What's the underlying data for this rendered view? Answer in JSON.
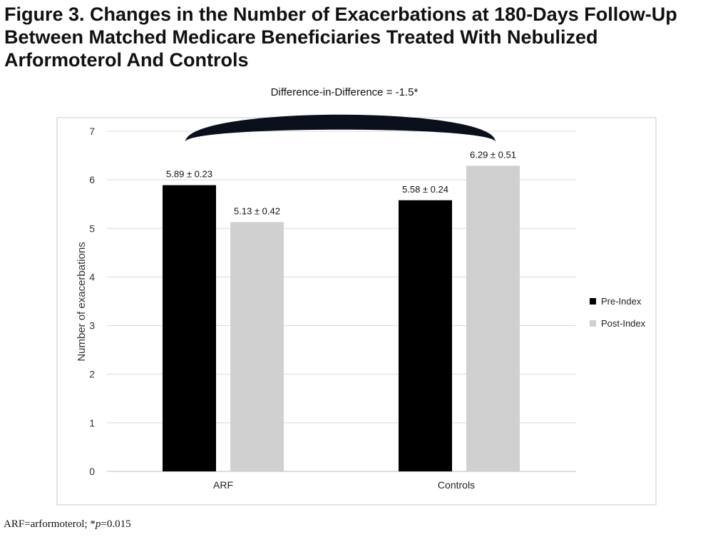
{
  "figure": {
    "title": "Figure 3. Changes in the Number of Exacerbations at 180-Days Follow-Up Between Matched Medicare Beneficiaries Treated With Nebulized Arformoterol And Controls",
    "footnote_prefix": "ARF=arformoterol; *",
    "footnote_p": "p",
    "footnote_suffix": "=0.015"
  },
  "chart_data": {
    "type": "bar",
    "title": "",
    "annotation": "Difference-in-Difference = -1.5*",
    "xlabel": "",
    "ylabel": "Number of exacerbations",
    "ylim": [
      0,
      7
    ],
    "yticks": [
      "0",
      "1",
      "2",
      "3",
      "4",
      "5",
      "6",
      "7"
    ],
    "grid": true,
    "legend_position": "right",
    "categories": [
      "ARF",
      "Controls"
    ],
    "series": [
      {
        "name": "Pre-Index",
        "color": "#000000",
        "values": [
          5.89,
          5.58
        ],
        "labels": [
          "5.89 ± 0.23",
          "5.58 ± 0.24"
        ]
      },
      {
        "name": "Post-Index",
        "color": "#d0d0d0",
        "values": [
          5.13,
          6.29
        ],
        "labels": [
          "5.13 ± 0.42",
          "6.29 ± 0.51"
        ]
      }
    ]
  }
}
